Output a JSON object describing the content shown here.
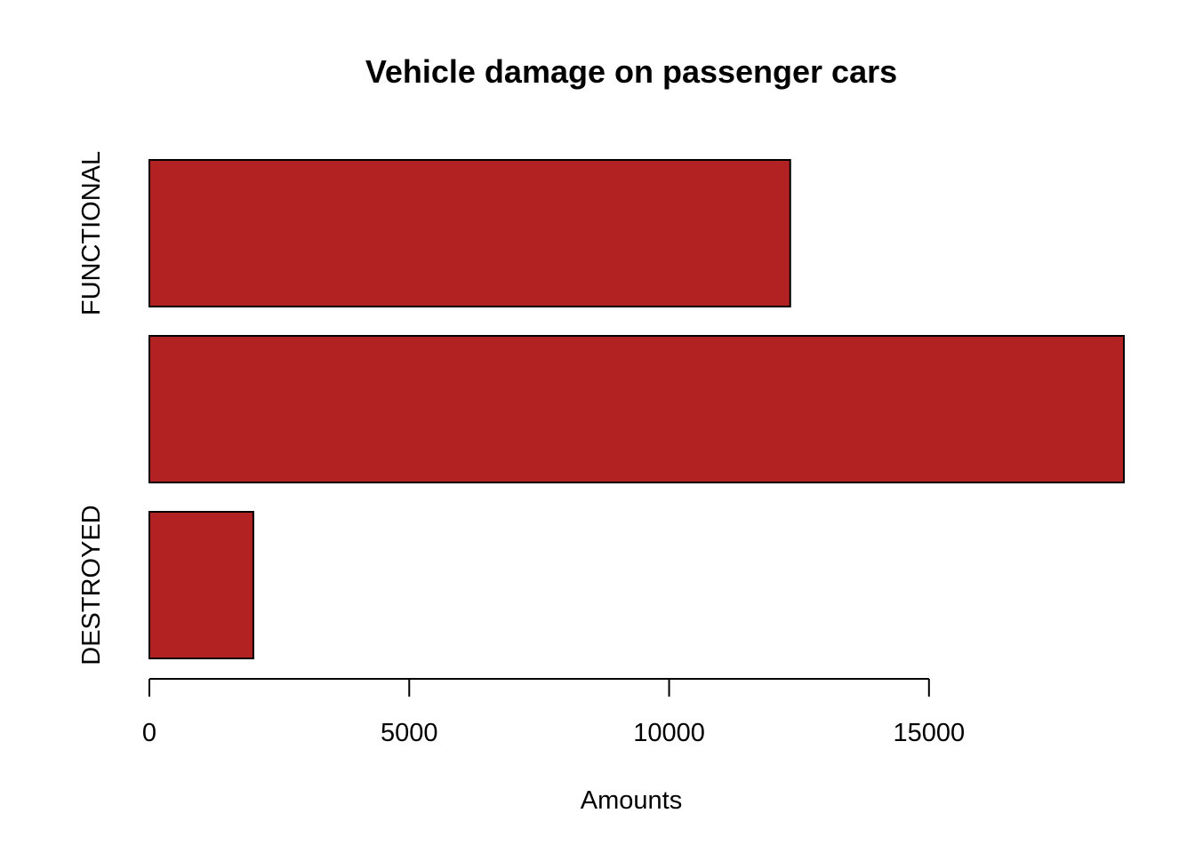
{
  "chart_data": {
    "type": "bar",
    "orientation": "horizontal",
    "title": "Vehicle damage on passenger cars",
    "xlabel": "Amounts",
    "ylabel": "",
    "categories": [
      "DESTROYED",
      "",
      "FUNCTIONAL"
    ],
    "values": [
      2000,
      18750,
      12330
    ],
    "xlim": [
      0,
      18750
    ],
    "xticks": [
      0,
      5000,
      10000,
      15000
    ],
    "bar_color": "#b22222",
    "grid": false,
    "legend": "none"
  }
}
